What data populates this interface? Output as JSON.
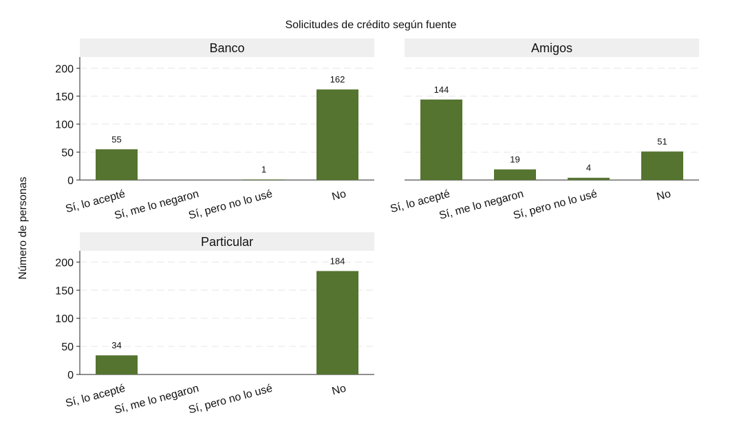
{
  "chart_data": {
    "type": "bar",
    "title": "Solicitudes de crédito según fuente",
    "ylabel": "Número de personas",
    "ylim": [
      0,
      220
    ],
    "yticks": [
      0,
      50,
      100,
      150,
      200
    ],
    "grid": true,
    "bar_color": "#55742f",
    "strip_color": "#efefef",
    "grid_color": "#e6e6e6",
    "categories": [
      "Sí, lo acepté",
      "Sí, me lo negaron",
      "Sí, pero no lo usé",
      "No"
    ],
    "panels": [
      {
        "name": "Banco",
        "values": [
          55,
          0,
          1,
          162
        ],
        "labels": [
          "55",
          "",
          "1",
          "162"
        ]
      },
      {
        "name": "Amigos",
        "values": [
          144,
          19,
          4,
          51
        ],
        "labels": [
          "144",
          "19",
          "4",
          "51"
        ]
      },
      {
        "name": "Particular",
        "values": [
          34,
          0,
          0,
          184
        ],
        "labels": [
          "34",
          "",
          "",
          "184"
        ]
      }
    ]
  }
}
